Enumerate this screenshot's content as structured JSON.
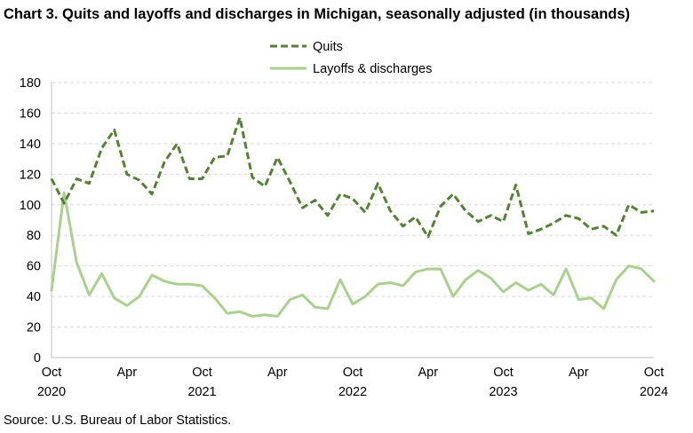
{
  "chart_data": {
    "type": "line",
    "title": "Chart 3. Quits and layoffs and discharges in Michigan, seasonally adjusted (in thousands)",
    "source": "Source: U.S. Bureau of Labor Statistics.",
    "ylim": [
      0,
      180
    ],
    "yticks": [
      0,
      20,
      40,
      60,
      80,
      100,
      120,
      140,
      160,
      180
    ],
    "grid": true,
    "legend_position": "top-center",
    "x_tick_labels": [
      {
        "month": "Oct",
        "year": "2020",
        "index": 0
      },
      {
        "month": "Apr",
        "year": "",
        "index": 6
      },
      {
        "month": "Oct",
        "year": "2021",
        "index": 12
      },
      {
        "month": "Apr",
        "year": "",
        "index": 18
      },
      {
        "month": "Oct",
        "year": "2022",
        "index": 24
      },
      {
        "month": "Apr",
        "year": "",
        "index": 30
      },
      {
        "month": "Oct",
        "year": "2023",
        "index": 36
      },
      {
        "month": "Apr",
        "year": "",
        "index": 42
      },
      {
        "month": "Oct",
        "year": "2024",
        "index": 48
      }
    ],
    "series": [
      {
        "name": "Quits",
        "color": "#548235",
        "style": "dashed",
        "values": [
          117,
          101,
          117,
          114,
          137,
          149,
          120,
          116,
          107,
          128,
          140,
          117,
          117,
          131,
          132,
          157,
          118,
          112,
          131,
          115,
          98,
          103,
          93,
          107,
          104,
          95,
          114,
          96,
          86,
          92,
          79,
          99,
          107,
          96,
          89,
          93,
          89,
          113,
          81,
          84,
          88,
          93,
          91,
          84,
          86,
          80,
          100,
          95,
          96
        ]
      },
      {
        "name": "Layoffs & discharges",
        "color": "#a9d18e",
        "style": "solid",
        "values": [
          44,
          108,
          62,
          41,
          55,
          39,
          34,
          40,
          54,
          50,
          48,
          48,
          47,
          39,
          29,
          30,
          27,
          28,
          27,
          38,
          41,
          33,
          32,
          51,
          35,
          40,
          48,
          49,
          47,
          56,
          58,
          58,
          40,
          51,
          57,
          52,
          43,
          49,
          44,
          48,
          41,
          58,
          38,
          39,
          32,
          51,
          60,
          58,
          50
        ]
      }
    ]
  }
}
